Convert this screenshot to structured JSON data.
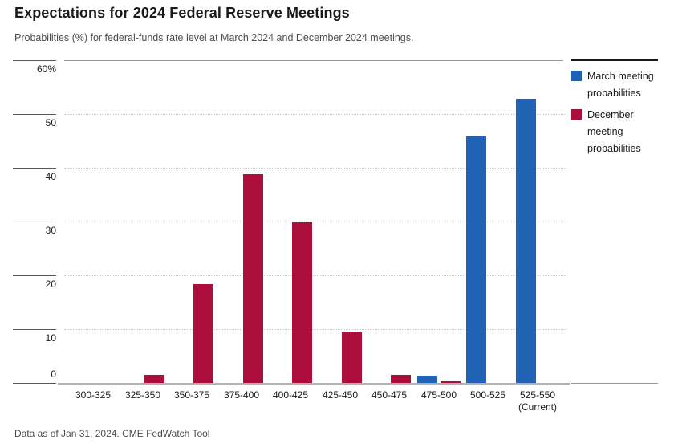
{
  "chart_data": {
    "type": "bar",
    "title": "Expectations for 2024 Federal Reserve Meetings",
    "subtitle": "Probabilities (%) for federal-funds rate level at March 2024 and December 2024 meetings.",
    "source_note": "Data as of Jan 31, 2024. CME FedWatch Tool",
    "categories": [
      {
        "label": "300-325",
        "note": ""
      },
      {
        "label": "325-350",
        "note": ""
      },
      {
        "label": "350-375",
        "note": ""
      },
      {
        "label": "375-400",
        "note": ""
      },
      {
        "label": "400-425",
        "note": ""
      },
      {
        "label": "425-450",
        "note": ""
      },
      {
        "label": "450-475",
        "note": ""
      },
      {
        "label": "475-500",
        "note": ""
      },
      {
        "label": "500-525",
        "note": ""
      },
      {
        "label": "525-550",
        "note": "(Current)"
      }
    ],
    "series": [
      {
        "name": "March meeting probabilities",
        "color": "#2062b4",
        "values": [
          0,
          0,
          0,
          0,
          0,
          0,
          0,
          1.4,
          45.8,
          52.9
        ]
      },
      {
        "name": "December meeting probabilities",
        "color": "#ad0f3c",
        "values": [
          0,
          1.5,
          18.4,
          38.8,
          29.9,
          9.5,
          1.5,
          0.3,
          0,
          0
        ]
      }
    ],
    "xlabel": "",
    "ylabel": "",
    "ylim": [
      0,
      60
    ],
    "yticks": [
      {
        "value": 60,
        "label": "60%"
      },
      {
        "value": 50,
        "label": "50"
      },
      {
        "value": 40,
        "label": "40"
      },
      {
        "value": 30,
        "label": "30"
      },
      {
        "value": 20,
        "label": "20"
      },
      {
        "value": 10,
        "label": "10"
      },
      {
        "value": 0,
        "label": "0"
      }
    ],
    "grid": "horizontal-dotted",
    "legend_position": "right"
  }
}
